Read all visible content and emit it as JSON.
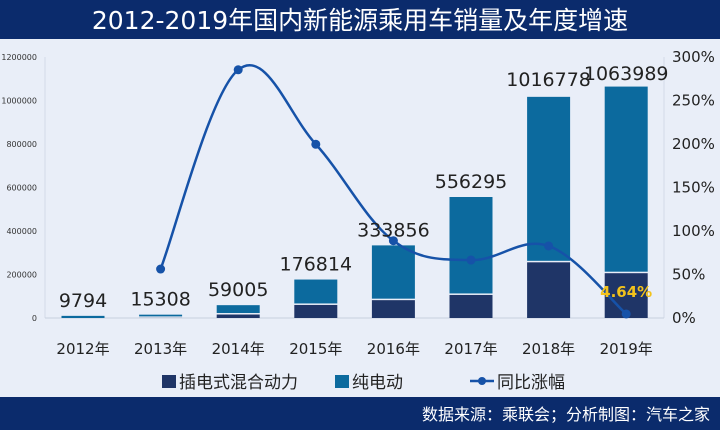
{
  "chart_data": {
    "type": "bar",
    "stacked": true,
    "title": "2012-2019年国内新能源乘用车销量及年度增速",
    "categories": [
      "2012年",
      "2013年",
      "2014年",
      "2015年",
      "2016年",
      "2017年",
      "2018年",
      "2019年"
    ],
    "series": [
      {
        "name": "插电式混合动力",
        "type": "bar",
        "axis": "left",
        "color": "#1f3567",
        "values": [
          0,
          500,
          16000,
          60000,
          82000,
          106000,
          256000,
          206000
        ]
      },
      {
        "name": "纯电动",
        "type": "bar",
        "axis": "left",
        "color": "#0c6a9e",
        "values": [
          9794,
          14808,
          43005,
          116814,
          251856,
          450295,
          760778,
          857989
        ]
      },
      {
        "name": "同比涨幅",
        "type": "line",
        "axis": "right",
        "color": "#1652a8",
        "values": [
          null,
          56.3,
          285.3,
          199.7,
          88.8,
          66.6,
          82.8,
          4.64
        ]
      }
    ],
    "totals": [
      "9794",
      "15308",
      "59005",
      "176814",
      "333856",
      "556295",
      "1016778",
      "1063989"
    ],
    "annotation": "4.64%",
    "annotation_color": "#f2c21b",
    "y_left": {
      "range": [
        0,
        1200000
      ],
      "ticks": [
        "0",
        "200000",
        "400000",
        "600000",
        "800000",
        "1000000",
        "1200000"
      ]
    },
    "y_right": {
      "range": [
        0,
        300
      ],
      "ticks": [
        "0%",
        "50%",
        "100%",
        "150%",
        "200%",
        "250%",
        "300%"
      ]
    },
    "grid": false,
    "legend_placement": "bottom",
    "source": "数据来源：乘联会；分析制图：汽车之家",
    "header_color": "#0b2b6c",
    "background_color": "#e9eef8"
  }
}
